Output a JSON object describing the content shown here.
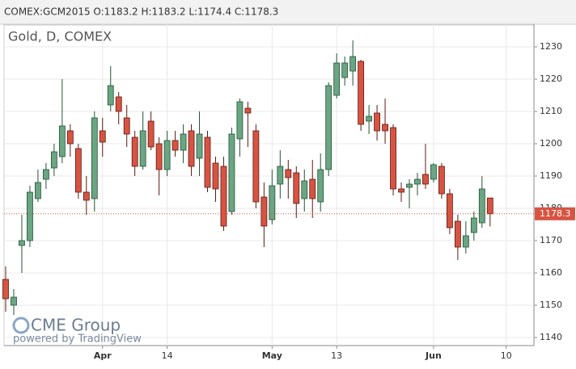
{
  "header": "COMEX:GCM2015 O:1183.2 H:1183.2 L:1174.4 C:1178.3",
  "chart_data": {
    "type": "candlestick",
    "title": "Gold, D, COMEX",
    "watermark": "CME Group",
    "watermark_sub": "powered by TradingView",
    "categories": [
      null,
      null,
      null,
      null,
      null,
      null,
      null,
      null,
      null,
      null,
      null,
      null,
      "Apr",
      null,
      null,
      null,
      null,
      null,
      null,
      null,
      "14",
      null,
      null,
      null,
      null,
      null,
      null,
      null,
      null,
      null,
      null,
      null,
      null,
      "May",
      null,
      null,
      null,
      null,
      null,
      null,
      null,
      "13",
      null,
      null,
      null,
      null,
      null,
      null,
      null,
      null,
      null,
      null,
      null,
      "Jun",
      null,
      null,
      null,
      null,
      null,
      null,
      null,
      null,
      "10"
    ],
    "open": [
      1158,
      1150,
      1168.5,
      1170,
      1183,
      1189,
      1192.5,
      1196,
      1204,
      1198.5,
      1185,
      1183,
      1204,
      1212,
      1214.5,
      1208,
      1202,
      1193,
      1207,
      1200,
      1192,
      1201,
      1198,
      1204,
      1195.5,
      1202,
      1194,
      1193,
      1179,
      1201.5,
      1211,
      1204,
      1183.5,
      1176.5,
      1187.5,
      1192,
      1191,
      1183,
      1189,
      1182,
      1192,
      1215,
      1220.5,
      1222.5,
      1225.5,
      1207,
      1209.5,
      1206,
      1205,
      1186,
      1186.5,
      1187.5,
      1190.5,
      1189,
      1193,
      1184.5,
      1176,
      1168,
      1172.5,
      1175.5,
      1183.2,
      null,
      null
    ],
    "high": [
      1162,
      1155,
      1178,
      1187,
      1192,
      1194,
      1200,
      1220,
      1206,
      1200,
      1190,
      1210,
      1208,
      1224,
      1216,
      1212,
      1204,
      1210,
      1210,
      1202,
      1204,
      1204,
      1206,
      1206,
      1210,
      1204,
      1196,
      1196,
      1205,
      1214,
      1213,
      1206,
      1188,
      1192,
      1198,
      1195,
      1193,
      1192,
      1195,
      1197,
      1219,
      1228,
      1227,
      1232,
      1226,
      1212,
      1212,
      1214,
      1206,
      1188,
      1189,
      1191,
      1200,
      1194,
      1194,
      1186,
      1178,
      1176,
      1179,
      1190,
      1183.2,
      null,
      null
    ],
    "low": [
      1148,
      1147,
      1160,
      1168,
      1182,
      1186,
      1190,
      1194,
      1196,
      1183,
      1178,
      1179,
      1196,
      1210,
      1206,
      1199,
      1190,
      1192,
      1198,
      1184,
      1190,
      1196,
      1194,
      1190,
      1190,
      1185,
      1182,
      1173,
      1178,
      1196,
      1199,
      1180,
      1168,
      1175,
      1183,
      1183,
      1177,
      1179,
      1177,
      1179,
      1190,
      1214,
      1218,
      1218,
      1204,
      1203,
      1201,
      1200,
      1184,
      1182,
      1180,
      1184,
      1186,
      1188,
      1183,
      1172,
      1164,
      1166,
      1170,
      1174,
      1174.4,
      null,
      null
    ],
    "close": [
      1152,
      1152.5,
      1170,
      1185,
      1188,
      1192,
      1197.5,
      1205.5,
      1200,
      1185,
      1182.5,
      1208,
      1200.5,
      1218,
      1210,
      1203,
      1193,
      1204,
      1199,
      1192,
      1201,
      1198,
      1203,
      1193,
      1203,
      1186.5,
      1186,
      1174.5,
      1203,
      1213,
      1209.5,
      1182,
      1174.5,
      1187,
      1193,
      1189.5,
      1181.5,
      1188.5,
      1183,
      1192,
      1218,
      1225,
      1225,
      1227,
      1206,
      1208.5,
      1204,
      1204,
      1186,
      1185,
      1187.5,
      1189,
      1187.5,
      1193.5,
      1184.5,
      1174,
      1168,
      1171.5,
      1177,
      1186,
      1178.3,
      null,
      null
    ],
    "up_color": "#6ba583",
    "up_border": "#225437",
    "down_color": "#d75442",
    "down_border": "#5b1a13",
    "ylim": [
      1137.5,
      1237
    ],
    "yticks": [
      1140,
      1150,
      1160,
      1170,
      1180,
      1190,
      1200,
      1210,
      1220,
      1230
    ],
    "grid": true
  }
}
